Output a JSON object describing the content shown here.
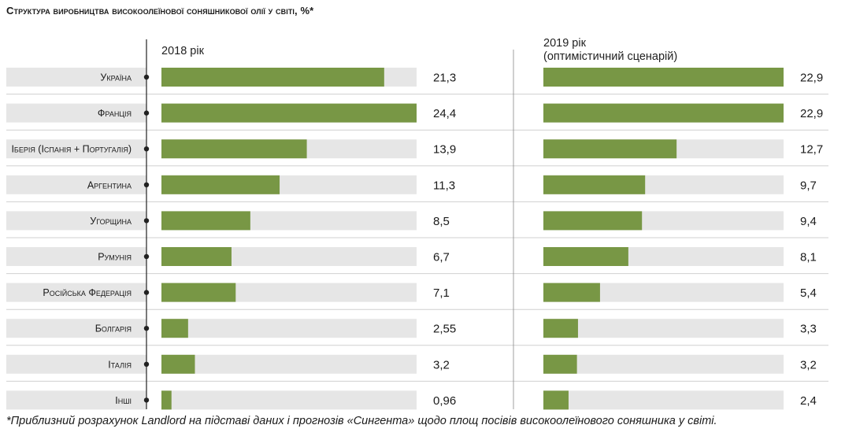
{
  "title": "Структура виробництва високоолеїнової соняшникової олії у світі, %*",
  "footnote": "*Приблизний розрахунок Landlord на підставі даних і прогнозів «Сингента» щодо площ посівів високоолеїнового соняшника у світі.",
  "colors": {
    "bar": "#789745",
    "track": "#e6e6e6",
    "axis": "#222222",
    "divider": "#d0d0d0"
  },
  "chart_data": {
    "type": "bar",
    "orientation": "horizontal",
    "categories": [
      "Україна",
      "Франція",
      "Іберія (Іспанія + Португалія)",
      "Аргентина",
      "Угорщина",
      "Румунія",
      "Російська Федерація",
      "Болгарія",
      "Італія",
      "Інші"
    ],
    "series": [
      {
        "name": "2018 рік",
        "values": [
          21.3,
          24.4,
          13.9,
          11.3,
          8.5,
          6.7,
          7.1,
          2.55,
          3.2,
          0.96
        ],
        "labels": [
          "21,3",
          "24,4",
          "13,9",
          "11,3",
          "8,5",
          "6,7",
          "7,1",
          "2,55",
          "3,2",
          "0,96"
        ],
        "max": 24.4
      },
      {
        "name": "2019 рік",
        "subtitle": "(оптимістичний сценарій)",
        "values": [
          22.9,
          22.9,
          12.7,
          9.7,
          9.4,
          8.1,
          5.4,
          3.3,
          3.2,
          2.4
        ],
        "labels": [
          "22,9",
          "22,9",
          "12,7",
          "9,7",
          "9,4",
          "8,1",
          "5,4",
          "3,3",
          "3,2",
          "2,4"
        ],
        "max": 22.9
      }
    ]
  }
}
